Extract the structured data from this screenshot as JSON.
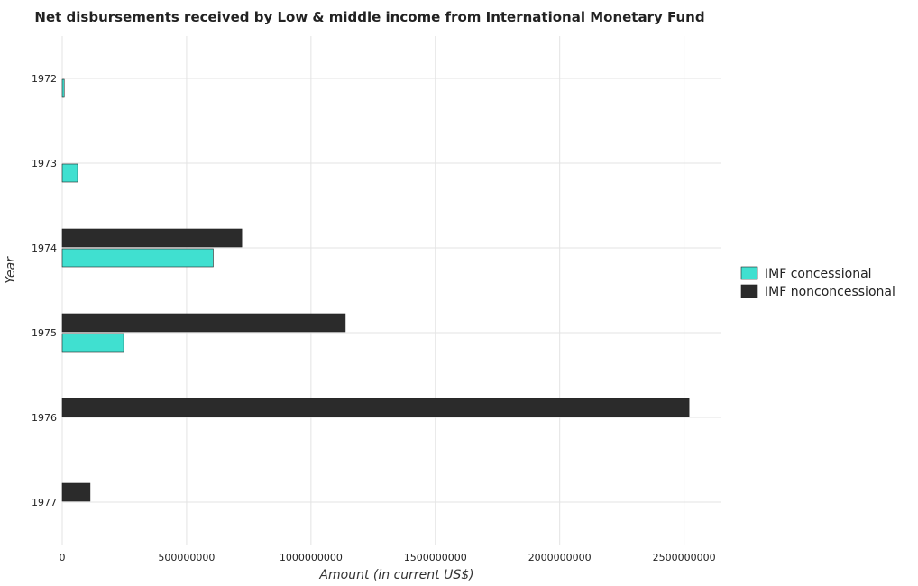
{
  "chart_data": {
    "type": "bar",
    "orientation": "horizontal",
    "title": "Net disbursements received by Low & middle income from International Monetary Fund",
    "xlabel": "Amount (in current US$)",
    "ylabel": "Year",
    "categories": [
      "1972",
      "1973",
      "1974",
      "1975",
      "1976",
      "1977"
    ],
    "series": [
      {
        "name": "IMF concessional",
        "color": "#40e0d0",
        "values": [
          8000000,
          62000000,
          607000000,
          247000000,
          0,
          0
        ]
      },
      {
        "name": "IMF nonconcessional",
        "color": "#2b2b2b",
        "values": [
          0,
          0,
          722000000,
          1138000000,
          2520000000,
          112000000
        ]
      }
    ],
    "xlim": [
      0,
      2650000000
    ],
    "xticks": [
      0,
      500000000,
      1000000000,
      1500000000,
      2000000000,
      2500000000
    ],
    "xtick_labels": [
      "0",
      "500000000",
      "1000000000",
      "1500000000",
      "2000000000",
      "2500000000"
    ],
    "grid": true,
    "legend_position": "right"
  }
}
